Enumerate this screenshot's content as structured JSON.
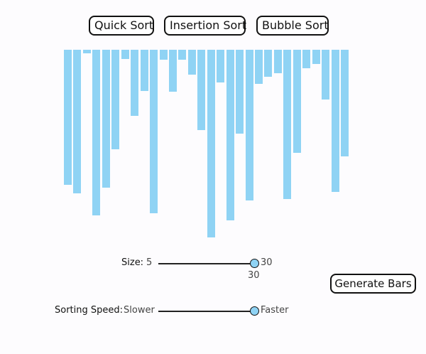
{
  "algorithms": {
    "quick": "Quick Sort",
    "insertion": "Insertion Sort",
    "bubble": "Bubble Sort"
  },
  "bars": {
    "color": "#8fd3f4",
    "heights": [
      190,
      202,
      5,
      233,
      194,
      140,
      13,
      93,
      58,
      230,
      14,
      59,
      14,
      35,
      113,
      264,
      46,
      240,
      118,
      212,
      48,
      38,
      33,
      210,
      145,
      26,
      20,
      70,
      200,
      150
    ]
  },
  "size_control": {
    "label": "Size:",
    "min_label": "5",
    "max_label": "30",
    "value_label": "30",
    "fraction": 1.0
  },
  "speed_control": {
    "label": "Sorting Speed:",
    "min_label": "Slower",
    "max_label": "Faster",
    "fraction": 1.0
  },
  "generate_button": "Generate Bars"
}
